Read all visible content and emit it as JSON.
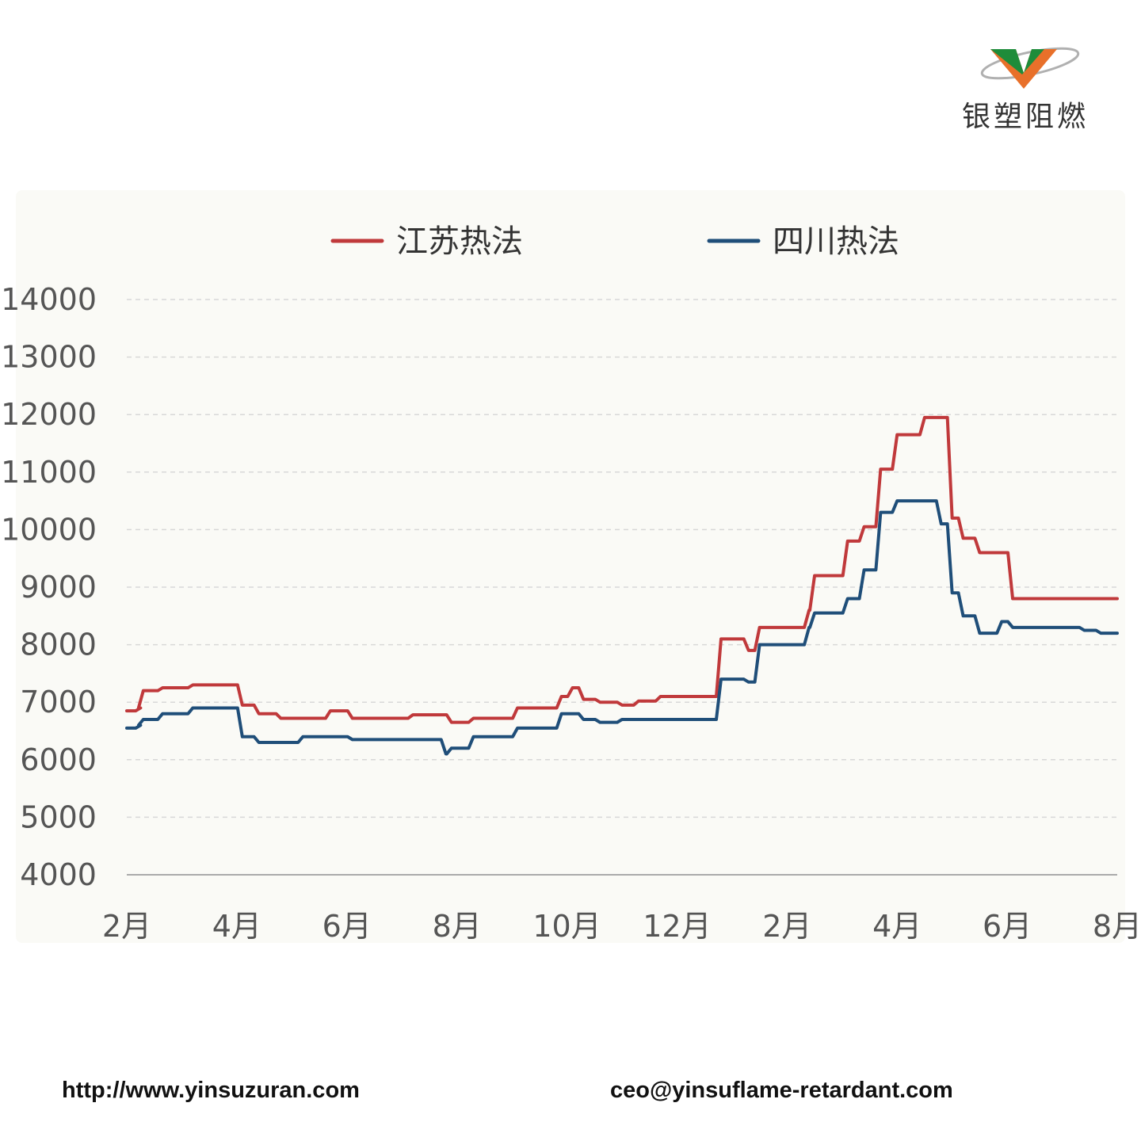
{
  "logo": {
    "text": "银塑阻燃",
    "colors": {
      "green": "#1e8c3a",
      "orange": "#e8702a",
      "gray": "#9a9a9a"
    }
  },
  "footer": {
    "url": "http://www.yinsuzuran.com",
    "email": "ceo@yinsuflame-retardant.com"
  },
  "chart_data": {
    "type": "line",
    "title": "",
    "xlabel": "",
    "ylabel": "",
    "ylim": [
      4000,
      14000
    ],
    "yticks": [
      4000,
      5000,
      6000,
      7000,
      8000,
      9000,
      10000,
      11000,
      12000,
      13000,
      14000
    ],
    "xticks": [
      "2月",
      "4月",
      "6月",
      "8月",
      "10月",
      "12月",
      "2月",
      "4月",
      "6月",
      "8月"
    ],
    "grid": true,
    "legend": "top",
    "x": [
      0,
      0.25,
      0.3,
      0.65,
      1.2,
      1.3,
      2.1,
      2.4,
      2.8,
      3.2,
      3.7,
      4.1,
      5.2,
      5.8,
      5.9,
      6.3,
      7.1,
      7.9,
      8.1,
      8.3,
      8.6,
      9.0,
      9.3,
      9.7,
      10.1,
      10.6,
      10.8,
      11.3,
      11.5,
      12.4,
      12.5,
      12.7,
      12.9,
      13.1,
      13.4,
      13.7,
      14.0,
      14.5,
      14.8,
      15.0,
      15.2,
      15.5,
      15.9,
      16.0,
      16.1,
      16.3,
      17.2,
      17.4,
      17.7,
      18.0
    ],
    "series": [
      {
        "name": "江苏热法",
        "color": "#c0393b",
        "values": [
          6850,
          6900,
          7200,
          7250,
          7300,
          7300,
          6950,
          6800,
          6720,
          6720,
          6850,
          6720,
          6780,
          6780,
          6650,
          6720,
          6900,
          7100,
          7250,
          7050,
          7000,
          6950,
          7020,
          7100,
          7100,
          7100,
          8100,
          7900,
          8300,
          8600,
          9200,
          9200,
          9200,
          9800,
          10050,
          11050,
          11650,
          11950,
          11950,
          10200,
          9850,
          9600,
          9600,
          9600,
          8800,
          8800,
          8800,
          8800,
          8800,
          8800
        ]
      },
      {
        "name": "四川热法",
        "color": "#1f4e79",
        "values": [
          6550,
          6600,
          6700,
          6800,
          6900,
          6900,
          6400,
          6300,
          6300,
          6400,
          6400,
          6350,
          6350,
          6100,
          6200,
          6400,
          6550,
          6800,
          6800,
          6700,
          6650,
          6700,
          6700,
          6700,
          6700,
          6700,
          7400,
          7350,
          8000,
          8300,
          8550,
          8550,
          8550,
          8800,
          9300,
          10300,
          10500,
          10500,
          10100,
          8900,
          8500,
          8200,
          8400,
          8400,
          8300,
          8300,
          8300,
          8250,
          8200,
          8200
        ]
      }
    ]
  }
}
